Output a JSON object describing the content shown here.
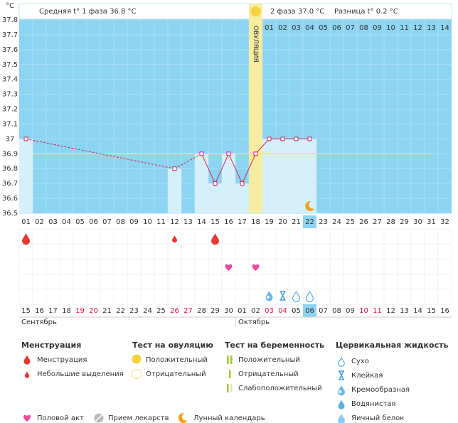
{
  "chart_data": {
    "type": "line",
    "y_unit": "°C",
    "header": {
      "phase1": "Средняя t° 1 фаза 36.8 °C",
      "phase2": "2 фаза 37.0 °C",
      "difference": "Разница t° 0.2 °C",
      "post_ovulation_days": [
        "01",
        "02",
        "03",
        "04",
        "05",
        "06",
        "07",
        "08",
        "09",
        "10",
        "11",
        "12",
        "13",
        "14"
      ]
    },
    "ovulation_label": "ОВУЛЯЦИЯ",
    "ovulation_day": 18,
    "categories": [
      "01",
      "02",
      "03",
      "04",
      "05",
      "06",
      "07",
      "08",
      "09",
      "10",
      "11",
      "12",
      "13",
      "14",
      "15",
      "16",
      "17",
      "18",
      "19",
      "20",
      "21",
      "22",
      "23",
      "24",
      "25",
      "26",
      "27",
      "28",
      "29",
      "30",
      "31",
      "32"
    ],
    "values": [
      37.0,
      null,
      null,
      null,
      null,
      null,
      null,
      null,
      null,
      null,
      null,
      36.8,
      null,
      36.9,
      36.7,
      36.9,
      36.7,
      36.9,
      37.0,
      37.0,
      37.0,
      37.0,
      null,
      null,
      null,
      null,
      null,
      null,
      null,
      null,
      null,
      null
    ],
    "color": "#d0245a",
    "coverline": 36.9,
    "ylim": [
      36.5,
      37.8
    ],
    "yticks": [
      36.5,
      36.6,
      36.7,
      36.8,
      36.9,
      37,
      37.1,
      37.2,
      37.3,
      37.4,
      37.5,
      37.6,
      37.7,
      37.8
    ],
    "highlight_day": 22,
    "dates": [
      "15",
      "16",
      "17",
      "18",
      "19",
      "20",
      "21",
      "22",
      "23",
      "24",
      "25",
      "26",
      "27",
      "28",
      "29",
      "30",
      "01",
      "02",
      "03",
      "04",
      "05",
      "06",
      "07",
      "08",
      "09",
      "10",
      "11",
      "12",
      "13",
      "14",
      "15",
      "16"
    ],
    "date_colors": [
      "#333",
      "#333",
      "#333",
      "#333",
      "#e0143c",
      "#e0143c",
      "#333",
      "#333",
      "#333",
      "#333",
      "#333",
      "#e0143c",
      "#e0143c",
      "#333",
      "#333",
      "#333",
      "#333",
      "#333",
      "#e0143c",
      "#e0143c",
      "#333",
      "#333",
      "#333",
      "#333",
      "#333",
      "#e0143c",
      "#e0143c",
      "#333",
      "#333",
      "#333",
      "#333",
      "#333"
    ],
    "months": [
      "Сентябрь",
      "Октябрь"
    ],
    "events": {
      "menstruation": [
        1,
        15
      ],
      "spotting": [
        12
      ],
      "intercourse": [
        16,
        18
      ],
      "moon": [
        22
      ],
      "cervical_creamy": [
        19
      ],
      "cervical_sticky": [
        20
      ],
      "cervical_dry": [
        21,
        22
      ]
    },
    "legend": {
      "menstruation": {
        "title": "Менструация",
        "items": [
          "Менструация",
          "Небольшие выделения"
        ]
      },
      "ovulation_test": {
        "title": "Тест на овуляцию",
        "items": [
          "Положительный",
          "Отрицательный"
        ]
      },
      "pregnancy_test": {
        "title": "Тест на беременность",
        "items": [
          "Положительный",
          "Отрицательный",
          "Слабоположительный"
        ]
      },
      "cervical": {
        "title": "Цервикальная жидкость",
        "items": [
          "Сухо",
          "Клейкая",
          "Кремообразная",
          "Водянистая",
          "Яичный белок"
        ]
      }
    },
    "legend_bottom": [
      "Половой акт",
      "Прием лекарств",
      "Лунный календарь"
    ]
  }
}
